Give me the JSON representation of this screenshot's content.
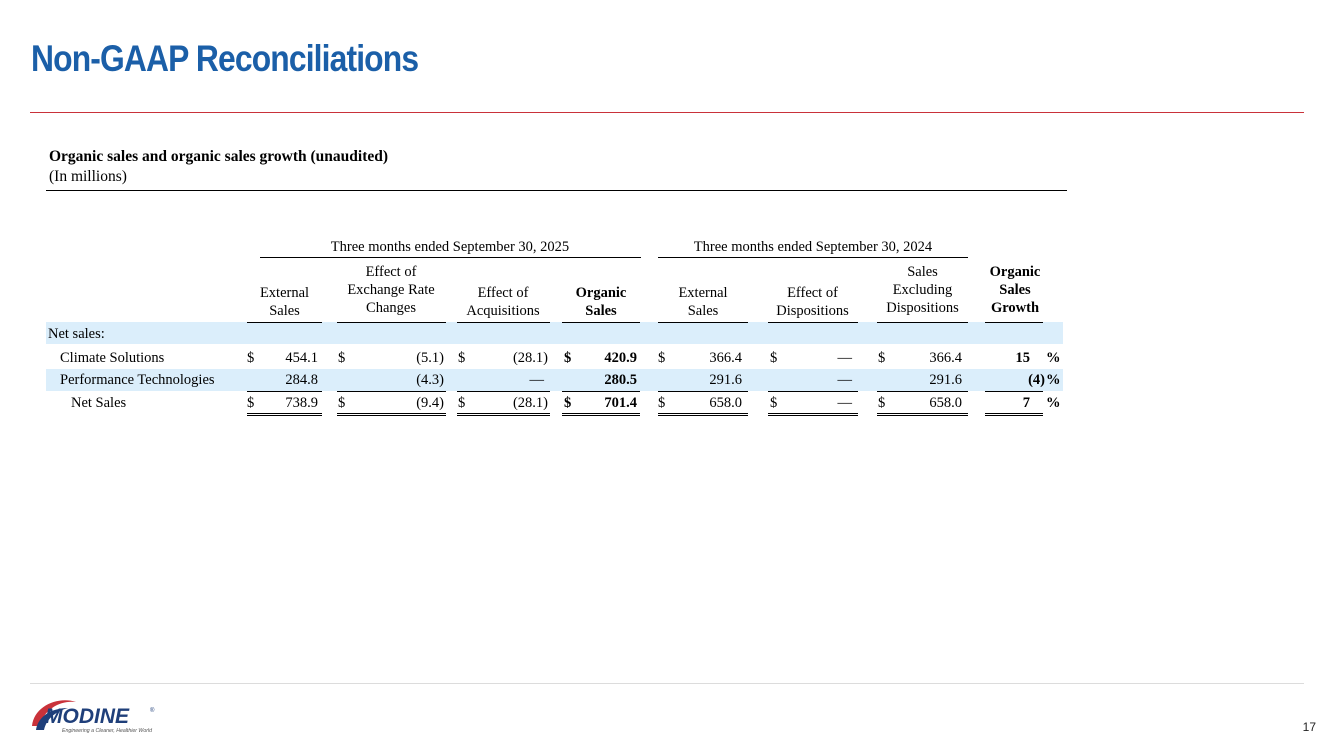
{
  "slide": {
    "title": "Non-GAAP Reconciliations",
    "page_number": "17"
  },
  "table": {
    "title": "Organic sales and organic sales growth (unaudited)",
    "subtitle": "(In millions)",
    "period_2025": "Three months ended September 30, 2025",
    "period_2024": "Three months ended September 30, 2024",
    "columns": {
      "ext_2025": [
        "External",
        "Sales"
      ],
      "fx": [
        "Effect of",
        "Exchange Rate",
        "Changes"
      ],
      "acq": [
        "Effect of",
        "Acquisitions"
      ],
      "organic": [
        "Organic",
        "Sales"
      ],
      "ext_2024": [
        "External",
        "Sales"
      ],
      "disp": [
        "Effect of",
        "Dispositions"
      ],
      "excl": [
        "Sales",
        "Excluding",
        "Dispositions"
      ],
      "growth": [
        "Organic",
        "Sales",
        "Growth"
      ]
    },
    "section_label": "Net sales:",
    "currency": "$",
    "rows": [
      {
        "label": "Climate Solutions",
        "ext_2025": "454.1",
        "fx": "(5.1)",
        "acq": "(28.1)",
        "organic": "420.9",
        "ext_2024": "366.4",
        "disp": "—",
        "excl": "366.4",
        "growth": "15",
        "pct": "%"
      },
      {
        "label": "Performance Technologies",
        "ext_2025": "284.8",
        "fx": "(4.3)",
        "acq": "—",
        "organic": "280.5",
        "ext_2024": "291.6",
        "disp": "—",
        "excl": "291.6",
        "growth": "(4)",
        "pct": "%"
      },
      {
        "label": "Net Sales",
        "ext_2025": "738.9",
        "fx": "(9.4)",
        "acq": "(28.1)",
        "organic": "701.4",
        "ext_2024": "658.0",
        "disp": "—",
        "excl": "658.0",
        "growth": "7",
        "pct": "%"
      }
    ]
  },
  "logo": {
    "wordmark": "MODINE",
    "tagline": "Engineering a Cleaner, Healthier World",
    "registered": "®",
    "colors": {
      "navy": "#1f3f7a",
      "red": "#c9323a"
    }
  }
}
